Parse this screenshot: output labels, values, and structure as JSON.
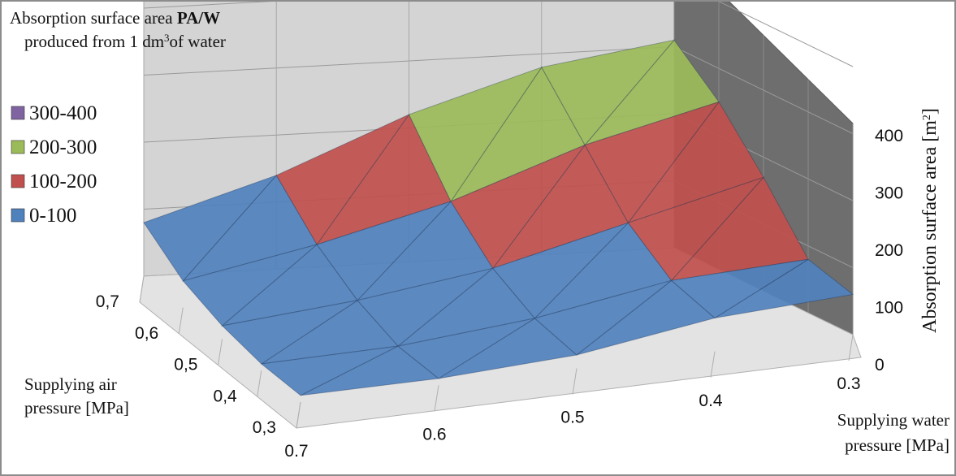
{
  "chart_data": {
    "type": "surface",
    "title": {
      "line1_prefix": "Absorption surface area ",
      "line1_bold": "PA/W",
      "line2_prefix": "produced from 1  dm",
      "line2_sup": "3",
      "line2_suffix": "of water"
    },
    "legend": [
      {
        "label": "300-400",
        "color": "#8064a2"
      },
      {
        "label": "200-300",
        "color": "#9bbb59"
      },
      {
        "label": "100-200",
        "color": "#c0504d"
      },
      {
        "label": "0-100",
        "color": "#4f81bd"
      }
    ],
    "x_axis": {
      "title_line1": "Supplying water",
      "title_line2": "pressure [MPa]",
      "categories": [
        "0.7",
        "0.6",
        "0.5",
        "0.4",
        "0.3"
      ]
    },
    "y_axis": {
      "title_line1": "Supplying air",
      "title_line2": "pressure [MPa]",
      "categories": [
        "0,3",
        "0,4",
        "0,5",
        "0,6",
        "0,7"
      ]
    },
    "z_axis": {
      "title_prefix": "Absorption surface area [m",
      "title_sup": "2",
      "title_suffix": "]",
      "ticks": [
        "0",
        "100",
        "200",
        "300",
        "400"
      ],
      "range": [
        0,
        400
      ]
    },
    "z_values": [
      [
        10,
        10,
        20,
        50,
        60
      ],
      [
        10,
        15,
        35,
        70,
        80
      ],
      [
        20,
        40,
        70,
        120,
        170
      ],
      [
        40,
        80,
        130,
        200,
        250
      ],
      [
        80,
        140,
        220,
        280,
        310
      ]
    ]
  }
}
